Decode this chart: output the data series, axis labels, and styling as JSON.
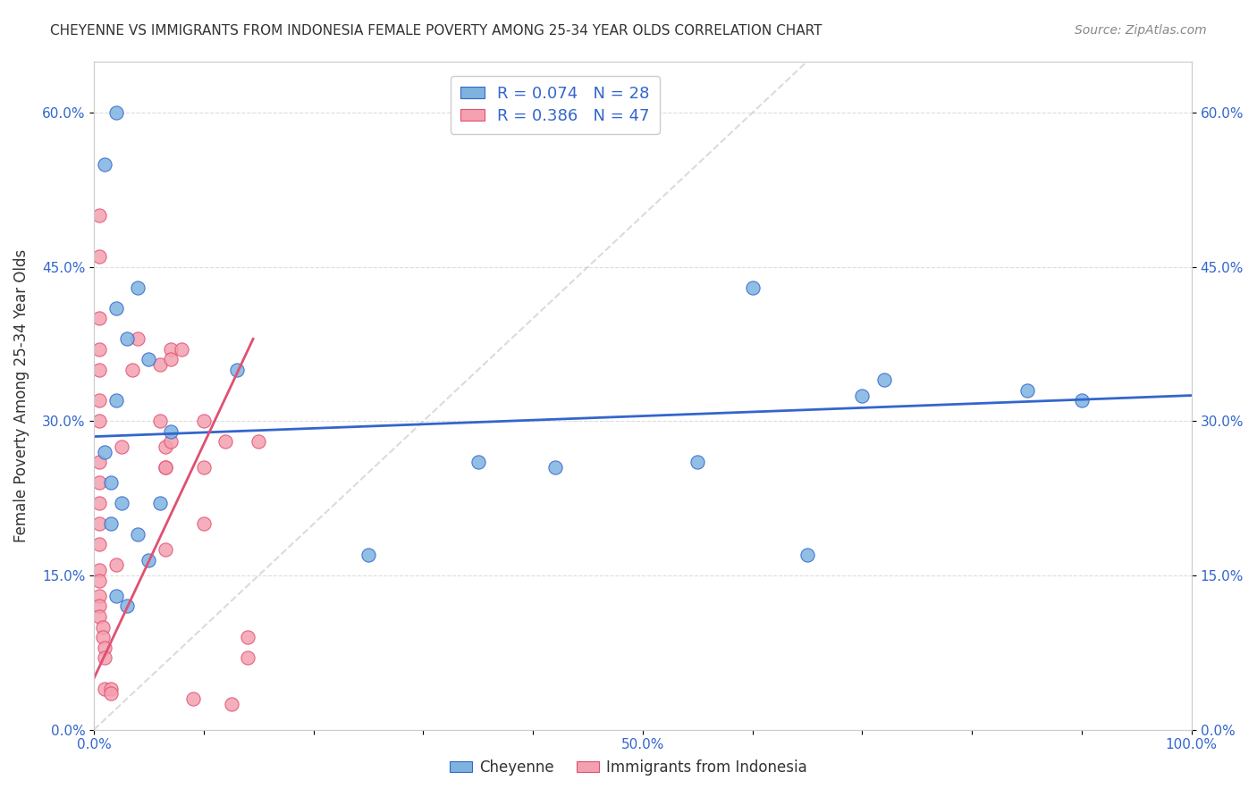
{
  "title": "CHEYENNE VS IMMIGRANTS FROM INDONESIA FEMALE POVERTY AMONG 25-34 YEAR OLDS CORRELATION CHART",
  "source": "Source: ZipAtlas.com",
  "xlabel": "",
  "ylabel": "Female Poverty Among 25-34 Year Olds",
  "xlim": [
    0.0,
    1.0
  ],
  "ylim": [
    0.0,
    0.65
  ],
  "x_ticks": [
    0.0,
    0.1,
    0.2,
    0.3,
    0.4,
    0.5,
    0.6,
    0.7,
    0.8,
    0.9,
    1.0
  ],
  "x_tick_labels": [
    "0.0%",
    "",
    "",
    "",
    "",
    "50.0%",
    "",
    "",
    "",
    "",
    "100.0%"
  ],
  "y_ticks": [
    0.0,
    0.15,
    0.3,
    0.45,
    0.6
  ],
  "y_tick_labels": [
    "0.0%",
    "15.0%",
    "30.0%",
    "45.0%",
    "60.0%"
  ],
  "cheyenne_color": "#7eb3e0",
  "indonesia_color": "#f4a0b0",
  "blue_line_color": "#3366cc",
  "pink_line_color": "#e05070",
  "diag_line_color": "#cccccc",
  "background_color": "#ffffff",
  "grid_color": "#dddddd",
  "legend_R_blue": "R = 0.074",
  "legend_N_blue": "N = 28",
  "legend_R_pink": "R = 0.386",
  "legend_N_pink": "N = 47",
  "cheyenne_x": [
    0.02,
    0.01,
    0.04,
    0.02,
    0.03,
    0.05,
    0.02,
    0.01,
    0.015,
    0.025,
    0.07,
    0.06,
    0.13,
    0.35,
    0.55,
    0.65,
    0.72,
    0.85,
    0.9,
    0.6,
    0.7,
    0.42,
    0.25,
    0.02,
    0.03,
    0.015,
    0.04,
    0.05
  ],
  "cheyenne_y": [
    0.6,
    0.55,
    0.43,
    0.41,
    0.38,
    0.36,
    0.32,
    0.27,
    0.24,
    0.22,
    0.29,
    0.22,
    0.35,
    0.26,
    0.26,
    0.17,
    0.34,
    0.33,
    0.32,
    0.43,
    0.325,
    0.255,
    0.17,
    0.13,
    0.12,
    0.2,
    0.19,
    0.165
  ],
  "indonesia_x": [
    0.005,
    0.005,
    0.005,
    0.005,
    0.005,
    0.005,
    0.005,
    0.005,
    0.005,
    0.005,
    0.005,
    0.005,
    0.005,
    0.005,
    0.005,
    0.005,
    0.005,
    0.008,
    0.008,
    0.01,
    0.01,
    0.01,
    0.015,
    0.015,
    0.02,
    0.025,
    0.035,
    0.04,
    0.06,
    0.06,
    0.065,
    0.065,
    0.07,
    0.08,
    0.09,
    0.1,
    0.1,
    0.1,
    0.12,
    0.125,
    0.14,
    0.14,
    0.15,
    0.065,
    0.07,
    0.07,
    0.065
  ],
  "indonesia_y": [
    0.5,
    0.46,
    0.4,
    0.37,
    0.35,
    0.32,
    0.3,
    0.26,
    0.24,
    0.22,
    0.2,
    0.18,
    0.155,
    0.145,
    0.13,
    0.12,
    0.11,
    0.1,
    0.09,
    0.08,
    0.07,
    0.04,
    0.04,
    0.035,
    0.16,
    0.275,
    0.35,
    0.38,
    0.355,
    0.3,
    0.275,
    0.255,
    0.37,
    0.37,
    0.03,
    0.3,
    0.255,
    0.2,
    0.28,
    0.025,
    0.07,
    0.09,
    0.28,
    0.175,
    0.36,
    0.28,
    0.255
  ],
  "blue_line_x": [
    0.0,
    1.0
  ],
  "blue_line_y": [
    0.285,
    0.325
  ],
  "pink_line_x": [
    0.0,
    0.145
  ],
  "pink_line_y": [
    0.05,
    0.38
  ]
}
